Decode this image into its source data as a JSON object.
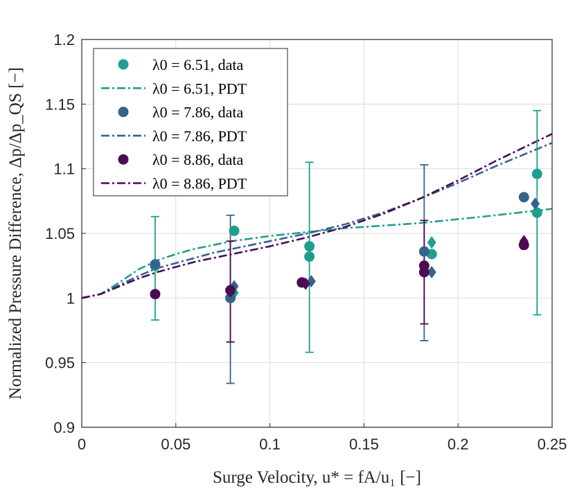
{
  "chart_data": {
    "type": "scatter",
    "xlabel": "Surge Velocity, u* = fA/u₁ [−]",
    "ylabel": "Normalized Pressure Difference, Δp/Δp_QS [−]",
    "xlim": [
      0,
      0.25
    ],
    "ylim": [
      0.9,
      1.2
    ],
    "xticks": [
      "0",
      "0.05",
      "0.1",
      "0.15",
      "0.2",
      "0.25"
    ],
    "yticks": [
      "0.9",
      "0.95",
      "1",
      "1.05",
      "1.1",
      "1.15",
      "1.2"
    ],
    "grid": true,
    "legend_position": "top-left",
    "series": [
      {
        "name": "λ0 = 6.51, data",
        "kind": "data",
        "color": "#1f9e8f",
        "circles": [
          [
            0.039,
            1.025
          ],
          [
            0.081,
            1.052
          ],
          [
            0.121,
            1.04
          ],
          [
            0.121,
            1.032
          ],
          [
            0.186,
            1.034
          ],
          [
            0.242,
            1.096
          ],
          [
            0.242,
            1.066
          ]
        ],
        "diamonds": [
          [
            0.081,
            1.004
          ],
          [
            0.186,
            1.043
          ]
        ],
        "errorbars": [
          [
            0.039,
            0.983,
            1.063
          ],
          [
            0.121,
            0.958,
            1.105
          ],
          [
            0.242,
            0.987,
            1.145
          ]
        ]
      },
      {
        "name": "λ0 = 6.51, PDT",
        "kind": "model",
        "color": "#1f9e8f",
        "x": [
          0,
          0.01,
          0.02,
          0.03,
          0.04,
          0.05,
          0.06,
          0.07,
          0.08,
          0.09,
          0.1,
          0.12,
          0.14,
          0.16,
          0.18,
          0.2,
          0.22,
          0.25
        ],
        "y": [
          1.0,
          1.003,
          1.012,
          1.022,
          1.029,
          1.034,
          1.038,
          1.041,
          1.044,
          1.046,
          1.048,
          1.051,
          1.054,
          1.056,
          1.058,
          1.061,
          1.064,
          1.069
        ]
      },
      {
        "name": "λ0 = 7.86, data",
        "kind": "data",
        "color": "#34638c",
        "circles": [
          [
            0.039,
            1.026
          ],
          [
            0.079,
            1.0
          ],
          [
            0.182,
            1.036
          ],
          [
            0.235,
            1.078
          ]
        ],
        "diamonds": [
          [
            0.081,
            1.009
          ],
          [
            0.122,
            1.013
          ],
          [
            0.186,
            1.02
          ],
          [
            0.241,
            1.073
          ]
        ],
        "errorbars": [
          [
            0.079,
            0.934,
            1.064
          ],
          [
            0.182,
            0.967,
            1.103
          ]
        ]
      },
      {
        "name": "λ0 = 7.86, PDT",
        "kind": "model",
        "color": "#34638c",
        "x": [
          0,
          0.01,
          0.02,
          0.03,
          0.04,
          0.05,
          0.06,
          0.07,
          0.08,
          0.09,
          0.1,
          0.12,
          0.14,
          0.16,
          0.18,
          0.2,
          0.22,
          0.25
        ],
        "y": [
          1.0,
          1.003,
          1.01,
          1.017,
          1.023,
          1.027,
          1.031,
          1.035,
          1.038,
          1.041,
          1.044,
          1.05,
          1.057,
          1.066,
          1.077,
          1.089,
          1.102,
          1.12
        ]
      },
      {
        "name": "λ0 = 8.86, data",
        "kind": "data",
        "color": "#4b0c54",
        "circles": [
          [
            0.039,
            1.003
          ],
          [
            0.079,
            1.006
          ],
          [
            0.117,
            1.012
          ],
          [
            0.182,
            1.025
          ],
          [
            0.182,
            1.02
          ],
          [
            0.235,
            1.041
          ]
        ],
        "diamonds": [
          [
            0.079,
            1.005
          ],
          [
            0.119,
            1.011
          ],
          [
            0.235,
            1.044
          ]
        ],
        "errorbars": [
          [
            0.079,
            0.966,
            1.044
          ],
          [
            0.182,
            0.98,
            1.06
          ]
        ]
      },
      {
        "name": "λ0 = 8.86, PDT",
        "kind": "model",
        "color": "#4b0c54",
        "x": [
          0,
          0.01,
          0.02,
          0.03,
          0.04,
          0.05,
          0.06,
          0.07,
          0.08,
          0.09,
          0.1,
          0.12,
          0.14,
          0.16,
          0.18,
          0.2,
          0.22,
          0.25
        ],
        "y": [
          1.0,
          1.003,
          1.009,
          1.015,
          1.02,
          1.024,
          1.028,
          1.031,
          1.034,
          1.037,
          1.04,
          1.047,
          1.055,
          1.065,
          1.077,
          1.091,
          1.106,
          1.127
        ]
      }
    ]
  }
}
